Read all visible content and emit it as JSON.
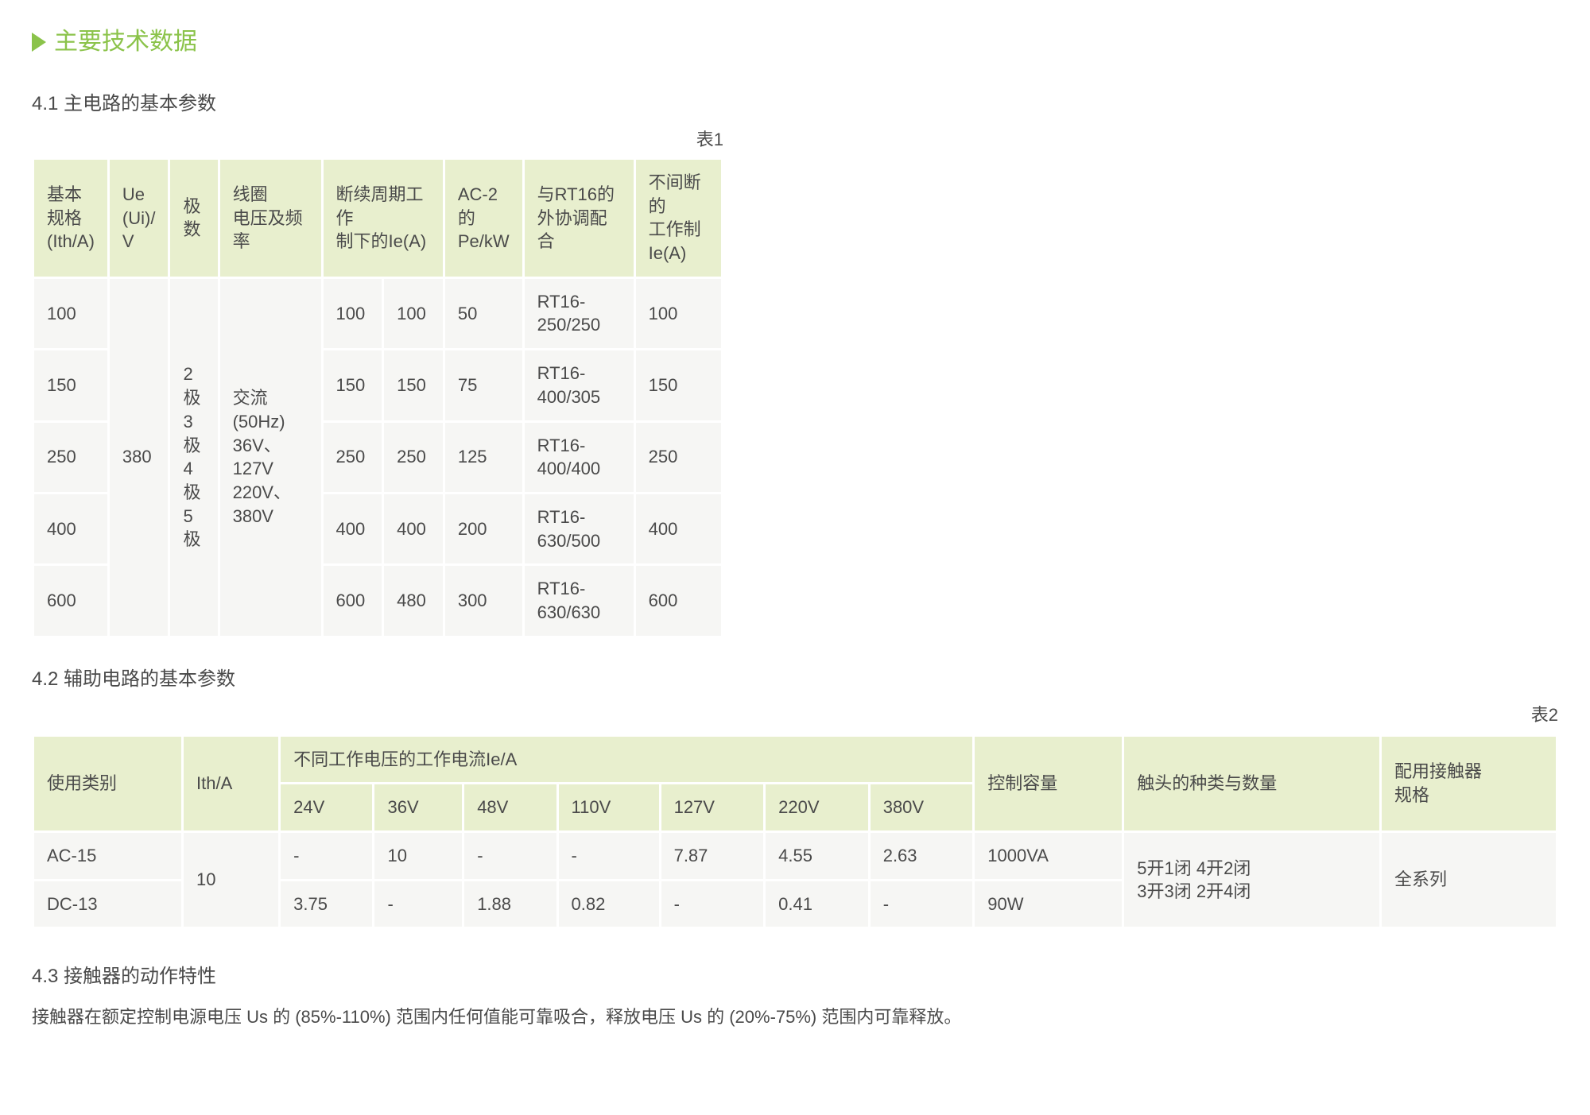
{
  "colors": {
    "accent": "#8bc34a",
    "header_bg": "#e8efce",
    "cell_bg": "#f6f6f4",
    "text": "#4a4a4a",
    "page_bg": "#ffffff"
  },
  "typography": {
    "base_fontsize_pt": 16,
    "title_fontsize_pt": 22,
    "font_family": "Microsoft YaHei"
  },
  "main_title": "主要技术数据",
  "section_41": {
    "title": "4.1 主电路的基本参数",
    "table_label": "表1",
    "table": {
      "type": "table",
      "columns": [
        "基本\n规格\n(Ith/A)",
        "Ue\n(Ui)/\nV",
        "极\n数",
        "线圈\n电压及频率",
        "断续周期工作\n制下的Ie(A)",
        "",
        "AC-2\n的\nPe/kW",
        "与RT16的\n外协调配合",
        "不间断的\n工作制Ie(A)"
      ],
      "merged_ue": "380",
      "merged_poles": "2极\n3极\n4极\n5极",
      "merged_coil": "交流(50Hz)\n36V、127V\n220V、380V",
      "rows": [
        [
          "100",
          "100",
          "100",
          "50",
          "RT16-250/250",
          "100"
        ],
        [
          "150",
          "150",
          "150",
          "75",
          "RT16-400/305",
          "150"
        ],
        [
          "250",
          "250",
          "250",
          "125",
          "RT16-400/400",
          "250"
        ],
        [
          "400",
          "400",
          "400",
          "200",
          "RT16-630/500",
          "400"
        ],
        [
          "600",
          "600",
          "480",
          "300",
          "RT16-630/630",
          "600"
        ]
      ]
    }
  },
  "section_42": {
    "title": "4.2 辅助电路的基本参数",
    "table_label": "表2",
    "table": {
      "type": "table",
      "header_top": [
        "使用类别",
        "Ith/A",
        "不同工作电压的工作电流Ie/A",
        "控制容量",
        "触头的种类与数量",
        "配用接触器\n规格"
      ],
      "header_sub": [
        "24V",
        "36V",
        "48V",
        "110V",
        "127V",
        "220V",
        "380V"
      ],
      "merged_ith": "10",
      "merged_contact": "5开1闭  4开2闭\n3开3闭  2开4闭",
      "merged_spec": "全系列",
      "rows": [
        {
          "cat": "AC-15",
          "vals": [
            "-",
            "10",
            "-",
            "-",
            "7.87",
            "4.55",
            "2.63"
          ],
          "cap": "1000VA"
        },
        {
          "cat": "DC-13",
          "vals": [
            "3.75",
            "-",
            "1.88",
            "0.82",
            "-",
            "0.41",
            "-"
          ],
          "cap": "90W"
        }
      ]
    }
  },
  "section_43": {
    "title": "4.3 接触器的动作特性",
    "paragraph": "接触器在额定控制电源电压 Us 的 (85%-110%) 范围内任何值能可靠吸合，释放电压 Us 的 (20%-75%) 范围内可靠释放。"
  }
}
